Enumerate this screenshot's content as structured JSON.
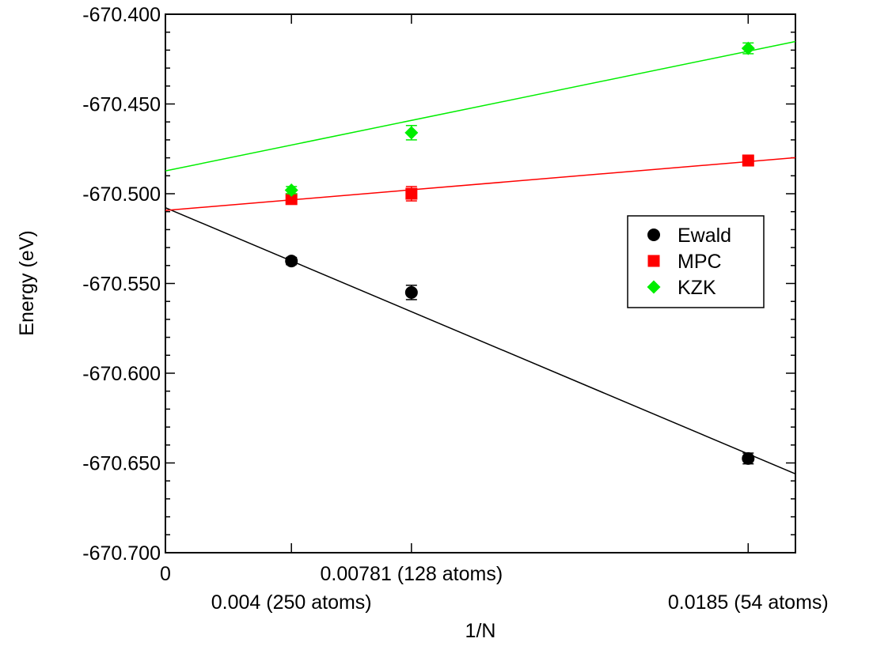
{
  "chart_data": {
    "type": "scatter",
    "title": "",
    "xlabel": "1/N",
    "ylabel": "Energy (eV)",
    "xlim": [
      0,
      0.02
    ],
    "ylim": [
      -670.7,
      -670.4
    ],
    "grid": false,
    "legend_position": "right",
    "x_ticks": [
      {
        "value": 0,
        "label": "0",
        "row": 1
      },
      {
        "value": 0.004,
        "label": "0.004 (250 atoms)",
        "row": 2
      },
      {
        "value": 0.00781,
        "label": "0.00781 (128 atoms)",
        "row": 1
      },
      {
        "value": 0.0185,
        "label": "0.0185 (54 atoms)",
        "row": 2
      }
    ],
    "y_ticks": [
      {
        "value": -670.4,
        "label": "-670.400"
      },
      {
        "value": -670.45,
        "label": "-670.450"
      },
      {
        "value": -670.5,
        "label": "-670.500"
      },
      {
        "value": -670.55,
        "label": "-670.550"
      },
      {
        "value": -670.6,
        "label": "-670.600"
      },
      {
        "value": -670.65,
        "label": "-670.650"
      },
      {
        "value": -670.7,
        "label": "-670.700"
      }
    ],
    "series": [
      {
        "name": "Ewald",
        "color": "#000000",
        "marker": "circle",
        "points": [
          {
            "x": 0.004,
            "y": -670.5375,
            "err": 0.002
          },
          {
            "x": 0.00781,
            "y": -670.555,
            "err": 0.004
          },
          {
            "x": 0.0185,
            "y": -670.6475,
            "err": 0.003
          }
        ],
        "fit": {
          "x": [
            0,
            0.02
          ],
          "y": [
            -670.5078,
            -670.6561
          ]
        }
      },
      {
        "name": "MPC",
        "color": "#ff0000",
        "marker": "square",
        "points": [
          {
            "x": 0.004,
            "y": -670.503,
            "err": 0.002
          },
          {
            "x": 0.00781,
            "y": -670.5,
            "err": 0.004
          },
          {
            "x": 0.0185,
            "y": -670.4815,
            "err": 0.003
          }
        ],
        "fit": {
          "x": [
            0,
            0.02
          ],
          "y": [
            -670.5093,
            -670.4799
          ]
        }
      },
      {
        "name": "KZK",
        "color": "#00ee00",
        "marker": "diamond",
        "points": [
          {
            "x": 0.004,
            "y": -670.498,
            "err": 0.002
          },
          {
            "x": 0.00781,
            "y": -670.466,
            "err": 0.004
          },
          {
            "x": 0.0185,
            "y": -670.419,
            "err": 0.003
          }
        ],
        "fit": {
          "x": [
            0,
            0.02
          ],
          "y": [
            -670.4873,
            -670.4152
          ]
        }
      }
    ]
  }
}
